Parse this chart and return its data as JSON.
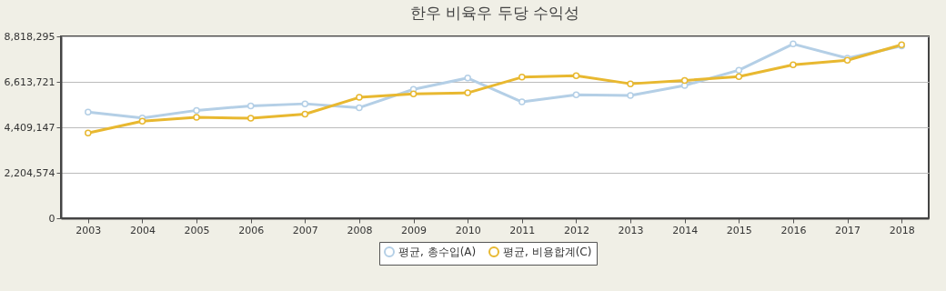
{
  "chart_data": {
    "type": "line",
    "title": "한우 비육우 두당 수익성",
    "categories": [
      "2003",
      "2004",
      "2005",
      "2006",
      "2007",
      "2008",
      "2009",
      "2010",
      "2011",
      "2012",
      "2013",
      "2014",
      "2015",
      "2016",
      "2017",
      "2018"
    ],
    "series": [
      {
        "name": "평균, 총수입(A)",
        "color": "#b4cfe6",
        "values": [
          5150000,
          4860000,
          5230000,
          5450000,
          5550000,
          5360000,
          6250000,
          6800000,
          5640000,
          5990000,
          5950000,
          6440000,
          7180000,
          8450000,
          7760000,
          8350000
        ]
      },
      {
        "name": "평균, 비용합계(C)",
        "color": "#e8b830",
        "values": [
          4130000,
          4710000,
          4890000,
          4850000,
          5050000,
          5860000,
          6030000,
          6080000,
          6840000,
          6910000,
          6520000,
          6680000,
          6870000,
          7440000,
          7660000,
          8410000
        ]
      }
    ],
    "ylim": [
      0,
      8818295
    ],
    "yticks": [
      0,
      {
        "value": 2204574,
        "label": "2,204,574"
      },
      {
        "value": 4409147,
        "label": "4,409,147"
      },
      {
        "value": 6613721,
        "label": "6,613,721"
      },
      {
        "value": 8818295,
        "label": "8,818,295"
      }
    ],
    "grid": "y",
    "legend": "bottom",
    "marker": "circle",
    "line_style": "solid"
  }
}
